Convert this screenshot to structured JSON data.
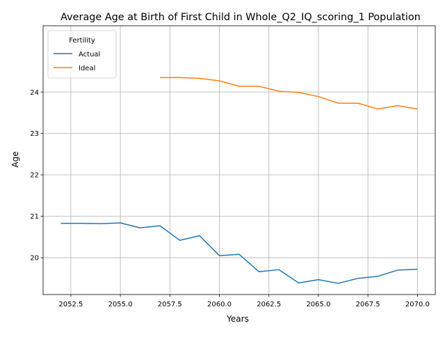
{
  "chart_data": {
    "type": "line",
    "title": "Average Age at Birth of First Child in Whole_Q2_IQ_scoring_1 Population",
    "xlabel": "Years",
    "ylabel": "Age",
    "xlim": [
      2051.1,
      2070.9
    ],
    "ylim": [
      19.11,
      25.6
    ],
    "xticks": [
      2052.5,
      2055.0,
      2057.5,
      2060.0,
      2062.5,
      2065.0,
      2067.5,
      2070.0
    ],
    "xtick_labels": [
      "2052.5",
      "2055.0",
      "2057.5",
      "2060.0",
      "2062.5",
      "2065.0",
      "2067.5",
      "2070.0"
    ],
    "yticks": [
      20,
      21,
      22,
      23,
      24
    ],
    "ytick_labels": [
      "20",
      "21",
      "22",
      "23",
      "24"
    ],
    "grid": true,
    "legend": {
      "title": "Fertility",
      "placement": "upper-left"
    },
    "series": [
      {
        "name": "Actual",
        "color": "#1f77b4",
        "x": [
          2052,
          2053,
          2054,
          2055,
          2056,
          2057,
          2058,
          2059,
          2060,
          2061,
          2062,
          2063,
          2064,
          2065,
          2066,
          2067,
          2068,
          2069,
          2070
        ],
        "y": [
          20.83,
          20.83,
          20.82,
          20.84,
          20.72,
          20.77,
          20.42,
          20.53,
          20.05,
          20.08,
          19.66,
          19.71,
          19.39,
          19.47,
          19.38,
          19.5,
          19.55,
          19.7,
          19.72
        ]
      },
      {
        "name": "Ideal",
        "color": "#ff7f0e",
        "x": [
          2057,
          2058,
          2059,
          2060,
          2061,
          2062,
          2063,
          2064,
          2065,
          2066,
          2067,
          2068,
          2069,
          2070
        ],
        "y": [
          24.35,
          24.35,
          24.33,
          24.27,
          24.14,
          24.14,
          24.02,
          23.99,
          23.89,
          23.73,
          23.73,
          23.59,
          23.67,
          23.59
        ]
      }
    ]
  }
}
